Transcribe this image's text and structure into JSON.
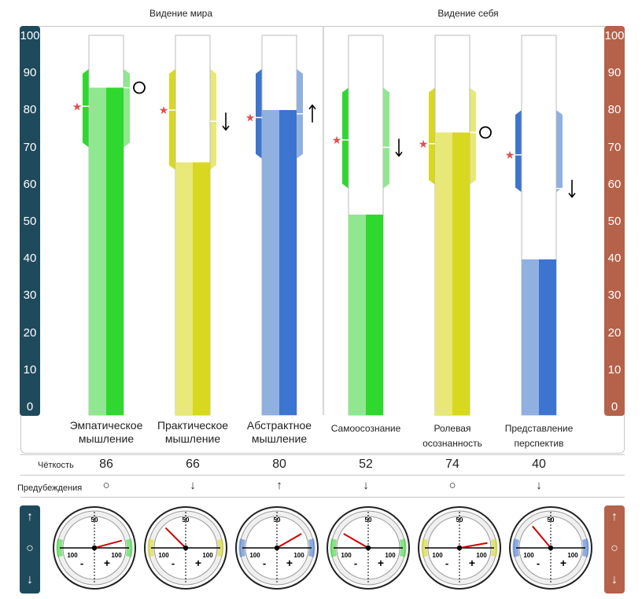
{
  "group_titles": {
    "world": "Видение мира",
    "self": "Видение себя"
  },
  "scale_ticks": [
    "100",
    "90",
    "80",
    "70",
    "60",
    "50",
    "40",
    "30",
    "20",
    "10",
    "0"
  ],
  "row_labels": {
    "clarity": "Чёткость",
    "bias": "Предубеждения"
  },
  "side_icons": {
    "up": "↑",
    "neutral": "○",
    "down": "↓"
  },
  "gauge_text": {
    "top": "50",
    "left": "100",
    "right": "100",
    "minus": "-",
    "plus": "+"
  },
  "colors": {
    "left_scale": "#1f4a5c",
    "right_scale": "#b5624a",
    "star": "#e05050",
    "green_dark": "#2fd82f",
    "green_light": "#8fe88f",
    "yellow_dark": "#d8d820",
    "yellow_light": "#e8e878",
    "blue_dark": "#3c74d0",
    "blue_light": "#90b0e0"
  },
  "chart_data": {
    "type": "bar",
    "ylim": [
      0,
      100
    ],
    "categories": [
      "Эмпатическое мышление",
      "Практическое мышление",
      "Абстрактное мышление",
      "Самоосознание",
      "Ролевая осознанность",
      "Представление перспектив"
    ],
    "label_lines": [
      [
        "Эмпатическое",
        "мышление"
      ],
      [
        "Практическое",
        "мышление"
      ],
      [
        "Абстрактное",
        "мышление"
      ],
      [
        "Самоосознание"
      ],
      [
        "Ролевая",
        "осознанность"
      ],
      [
        "Представление",
        "перспектив"
      ]
    ],
    "groups": [
      {
        "name": "Видение мира",
        "categories": [
          0,
          1,
          2
        ]
      },
      {
        "name": "Видение себя",
        "categories": [
          3,
          4,
          5
        ]
      }
    ],
    "clarity": [
      86,
      66,
      80,
      52,
      74,
      40
    ],
    "range_low": [
      70,
      64,
      67,
      59,
      60,
      58
    ],
    "range_high": [
      91,
      91,
      91,
      86,
      86,
      80
    ],
    "star_values": [
      81,
      80,
      78,
      72,
      71,
      68
    ],
    "marker_values": [
      86,
      77,
      79,
      70,
      74,
      59
    ],
    "bias": [
      "○",
      "↓",
      "↑",
      "↓",
      "○",
      "↓"
    ],
    "series_colors": [
      "green",
      "yellow",
      "blue",
      "green",
      "yellow",
      "blue"
    ],
    "gauge_angles": [
      75,
      -45,
      60,
      -60,
      80,
      -40
    ]
  }
}
